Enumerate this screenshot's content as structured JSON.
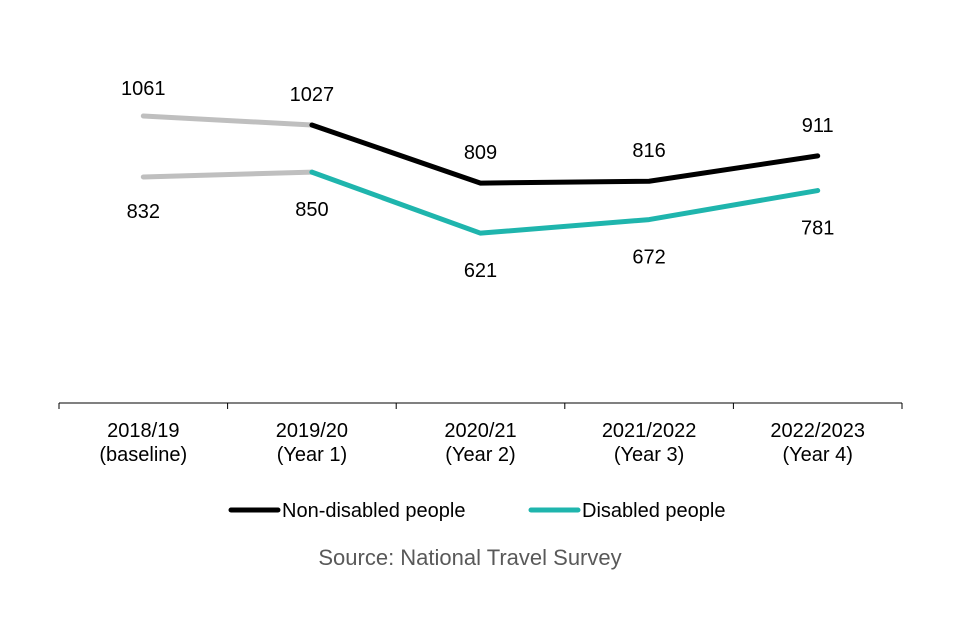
{
  "chart_data": {
    "type": "line",
    "title": "",
    "xlabel": "",
    "ylabel": "",
    "ylim": [
      0,
      1100
    ],
    "grid": false,
    "categories": [
      [
        "2018/19",
        "(baseline)"
      ],
      [
        "2019/20",
        "(Year 1)"
      ],
      [
        "2020/21",
        "(Year 2)"
      ],
      [
        "2021/2022",
        "(Year 3)"
      ],
      [
        "2022/2023",
        "(Year 4)"
      ]
    ],
    "series": [
      {
        "name": "Non-disabled people",
        "color": "#000000",
        "baseline_color": "#bfbfbf",
        "values": [
          1061,
          1027,
          809,
          816,
          911
        ],
        "label_position": "above"
      },
      {
        "name": "Disabled people",
        "color": "#1fb5ad",
        "baseline_color": "#bfbfbf",
        "values": [
          832,
          850,
          621,
          672,
          781
        ],
        "label_position": "below"
      }
    ],
    "baseline_segment_note": "First segment (baseline to Year 1) drawn in grey",
    "legend": {
      "placement": "bottom-center",
      "entries": [
        "Non-disabled people",
        "Disabled people"
      ]
    },
    "source": "Source: National Travel Survey"
  }
}
